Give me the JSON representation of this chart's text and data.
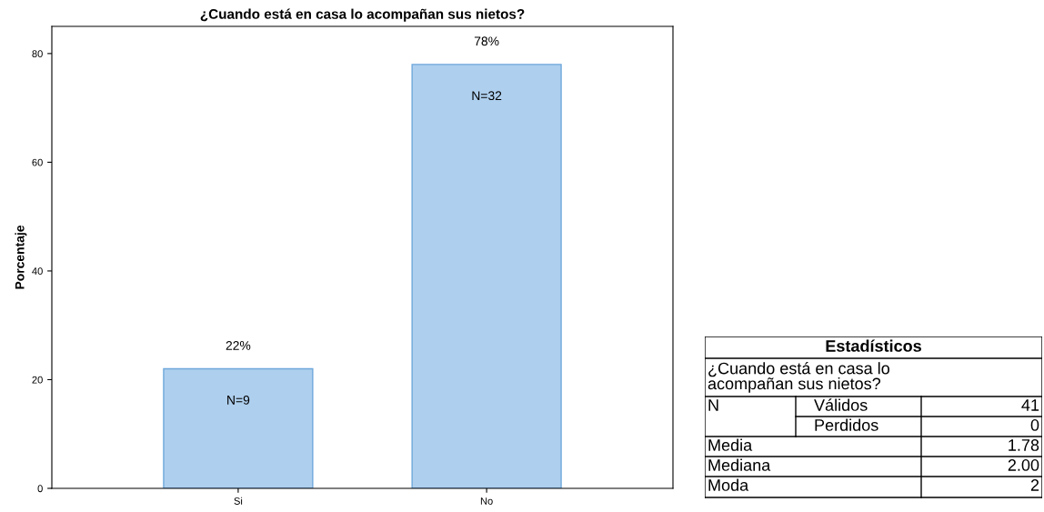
{
  "chart_data": [
    {
      "type": "bar",
      "title": "¿Cuando está en casa lo acompañan sus nietos?",
      "ylabel": "Porcentaje",
      "categories": [
        "Si",
        "No"
      ],
      "values": [
        22,
        78
      ],
      "value_labels": [
        "22%",
        "78%"
      ],
      "color": "#aecfee",
      "annotations": [
        "N=9",
        "N=32"
      ],
      "ylim": [
        0,
        85
      ],
      "yticks": [
        0,
        20,
        40,
        60,
        80
      ],
      "grid": false,
      "legend": false
    },
    {
      "type": "other",
      "title": "Estadísticos",
      "subtitle": "¿Cuando está en casa lo\nacompañan sus nietos?",
      "annotations": [
        "N",
        "Válidos",
        "41",
        "Perdidos",
        "0",
        "Media",
        "1.78",
        "Mediana",
        "2.00",
        "Moda",
        "2"
      ]
    }
  ]
}
